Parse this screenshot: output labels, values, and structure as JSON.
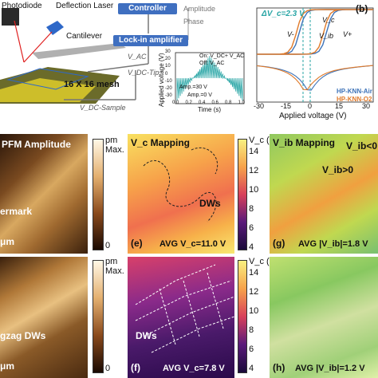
{
  "schematic": {
    "photodiode": "Photodiode",
    "deflection_laser": "Deflection Laser",
    "cantilever": "Cantilever",
    "controller": "Controller",
    "amplitude": "Amplitude",
    "phase": "Phase",
    "lockin": "Lock-in amplifier",
    "vac": "V_AC",
    "vdc_tip": "V_DC-Tip",
    "mesh": "16 X 16 mesh",
    "vdc_sample": "V_DC-Sample",
    "inset": {
      "ylabel": "Applied voltage (V)",
      "xlabel": "Time (s)",
      "on_label": "On: V_DC+ V_AC",
      "off_label": "Off: V_AC",
      "amp30": "Amp.=30 V",
      "amp0": "Amp.=0 V",
      "yticks": [
        "30",
        "20",
        "10",
        "0",
        "-10",
        "-20",
        "-30"
      ],
      "xticks": [
        "0.0",
        "0.2",
        "0.4",
        "0.6",
        "0.8",
        "1.0"
      ]
    }
  },
  "panel_b": {
    "label": "(b)",
    "delta_vc": "ΔV_c=2.3 V",
    "vc_label": "V_c",
    "vib_label": "V_ib",
    "vplus": "V+",
    "vminus": "V-",
    "legend": [
      "HP-KNN-Air",
      "HP-KNN-O2"
    ],
    "xlabel": "Applied voltage (V)",
    "xticks": [
      "-30",
      "-15",
      "0",
      "15",
      "30"
    ],
    "colors": {
      "air": "#3e73b8",
      "o2": "#e07a2a"
    }
  },
  "maps": {
    "pfm_title": "PFM Amplitude",
    "watermark_fragment": "ermark",
    "um_fragment": "μm",
    "pm": "pm",
    "max": "Max.",
    "zero": "0",
    "zigzag": "gzag DWs",
    "vc_title": "V_c Mapping",
    "vc_unit": "V_c (V)",
    "vc_ticks": [
      "14",
      "12",
      "10",
      "8",
      "6",
      "4"
    ],
    "dws": "DWs",
    "avg_e": "AVG V_c=11.0 V",
    "avg_f": "AVG V_c=7.8 V",
    "panel_e": "(e)",
    "panel_f": "(f)",
    "vib_title": "V_ib Mapping",
    "vib_lt0": "V_ib<0",
    "vib_gt0": "V_ib>0",
    "avg_g": "AVG |V_ib|=1.8 V",
    "avg_h": "AVG |V_ib|=1.2 V",
    "panel_g": "(g)",
    "panel_h": "(h)"
  }
}
